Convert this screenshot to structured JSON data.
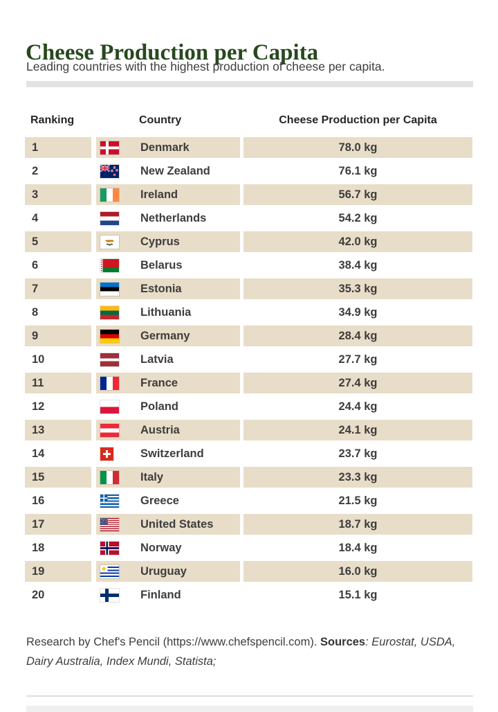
{
  "page": {
    "title": "Cheese Production per Capita",
    "subtitle": "Leading countries with the highest production of cheese per capita.",
    "footer": {
      "research_text": "Research by Chef's Pencil (https://www.chefspencil.com). ",
      "sources_label": "Sources",
      "sources_colon": ": ",
      "sources_text": "Eurostat, USDA, Dairy Australia, Index Mundi, Statista;"
    },
    "colors": {
      "title_green": "#28481f",
      "row_beige": "#e8ddc8",
      "body_text": "#3d3d3d",
      "divider_gray": "#e3e3e3"
    }
  },
  "chart_data": {
    "type": "table",
    "title": "Cheese Production per Capita",
    "subtitle": "Leading countries with the highest production of cheese per capita.",
    "columns": [
      "Ranking",
      "Country",
      "Cheese Production per Capita"
    ],
    "unit": "kg",
    "rows": [
      {
        "rank": 1,
        "country": "Denmark",
        "value_kg": 78.0,
        "display_value": "78.0 kg",
        "flag": "dk"
      },
      {
        "rank": 2,
        "country": "New Zealand",
        "value_kg": 76.1,
        "display_value": "76.1 kg",
        "flag": "nz"
      },
      {
        "rank": 3,
        "country": "Ireland",
        "value_kg": 56.7,
        "display_value": "56.7 kg",
        "flag": "ie"
      },
      {
        "rank": 4,
        "country": "Netherlands",
        "value_kg": 54.2,
        "display_value": "54.2 kg",
        "flag": "nl"
      },
      {
        "rank": 5,
        "country": "Cyprus",
        "value_kg": 42.0,
        "display_value": "42.0 kg",
        "flag": "cy"
      },
      {
        "rank": 6,
        "country": "Belarus",
        "value_kg": 38.4,
        "display_value": "38.4 kg",
        "flag": "by"
      },
      {
        "rank": 7,
        "country": "Estonia",
        "value_kg": 35.3,
        "display_value": "35.3 kg",
        "flag": "ee"
      },
      {
        "rank": 8,
        "country": "Lithuania",
        "value_kg": 34.9,
        "display_value": "34.9 kg",
        "flag": "lt"
      },
      {
        "rank": 9,
        "country": "Germany",
        "value_kg": 28.4,
        "display_value": "28.4 kg",
        "flag": "de"
      },
      {
        "rank": 10,
        "country": "Latvia",
        "value_kg": 27.7,
        "display_value": "27.7 kg",
        "flag": "lv"
      },
      {
        "rank": 11,
        "country": "France",
        "value_kg": 27.4,
        "display_value": "27.4 kg",
        "flag": "fr"
      },
      {
        "rank": 12,
        "country": "Poland",
        "value_kg": 24.4,
        "display_value": "24.4 kg",
        "flag": "pl"
      },
      {
        "rank": 13,
        "country": "Austria",
        "value_kg": 24.1,
        "display_value": "24.1 kg",
        "flag": "at"
      },
      {
        "rank": 14,
        "country": "Switzerland",
        "value_kg": 23.7,
        "display_value": "23.7 kg",
        "flag": "ch"
      },
      {
        "rank": 15,
        "country": "Italy",
        "value_kg": 23.3,
        "display_value": "23.3 kg",
        "flag": "it"
      },
      {
        "rank": 16,
        "country": "Greece",
        "value_kg": 21.5,
        "display_value": "21.5 kg",
        "flag": "gr"
      },
      {
        "rank": 17,
        "country": "United States",
        "value_kg": 18.7,
        "display_value": "18.7 kg",
        "flag": "us"
      },
      {
        "rank": 18,
        "country": "Norway",
        "value_kg": 18.4,
        "display_value": "18.4 kg",
        "flag": "no"
      },
      {
        "rank": 19,
        "country": "Uruguay",
        "value_kg": 16.0,
        "display_value": "16.0 kg",
        "flag": "uy"
      },
      {
        "rank": 20,
        "country": "Finland",
        "value_kg": 15.1,
        "display_value": "15.1 kg",
        "flag": "fi"
      }
    ]
  }
}
